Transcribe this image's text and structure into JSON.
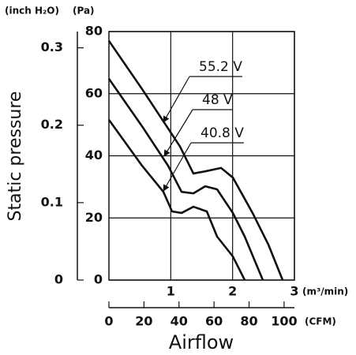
{
  "chart_data": {
    "type": "line",
    "x_label": "Airflow",
    "y_label": "Static pressure",
    "x_unit": "(m³/min)",
    "y_unit": "(Pa)",
    "y2_unit": "(inch H₂O)",
    "x2_unit": "(CFM)",
    "xlim": [
      0,
      3
    ],
    "xticks": [
      1,
      2,
      3
    ],
    "ylim": [
      0,
      80
    ],
    "yticks": [
      0,
      20,
      40,
      60,
      80
    ],
    "y2lim": [
      0,
      0.321
    ],
    "y2ticks": [
      0,
      0.1,
      0.2,
      0.3
    ],
    "x2lim": [
      0,
      105.9
    ],
    "x2ticks": [
      0,
      20,
      40,
      60,
      80,
      100
    ],
    "grid": true,
    "series": [
      {
        "name": "55.2 V",
        "color": "#111111",
        "x": [
          0,
          0.536,
          1.149,
          1.366,
          1.557,
          1.813,
          2.004,
          2.323,
          2.579,
          2.809
        ],
        "values": [
          77.0,
          61.5,
          43.0,
          34.3,
          35.0,
          36.1,
          33.0,
          21.6,
          11.4,
          0
        ]
      },
      {
        "name": "48 V",
        "color": "#111111",
        "x": [
          0,
          0.536,
          0.957,
          1.175,
          1.366,
          1.557,
          1.749,
          2.004,
          2.196,
          2.489
        ],
        "values": [
          64.8,
          49.5,
          36.8,
          28.4,
          27.9,
          30.2,
          29.2,
          21.6,
          14.0,
          0
        ]
      },
      {
        "name": "40.8 V",
        "color": "#111111",
        "x": [
          0,
          0.536,
          0.881,
          1.021,
          1.175,
          1.366,
          1.583,
          1.749,
          2.004,
          2.196
        ],
        "values": [
          51.6,
          36.8,
          28.4,
          22.1,
          21.6,
          23.6,
          22.1,
          14.0,
          7.6,
          0
        ]
      }
    ]
  }
}
